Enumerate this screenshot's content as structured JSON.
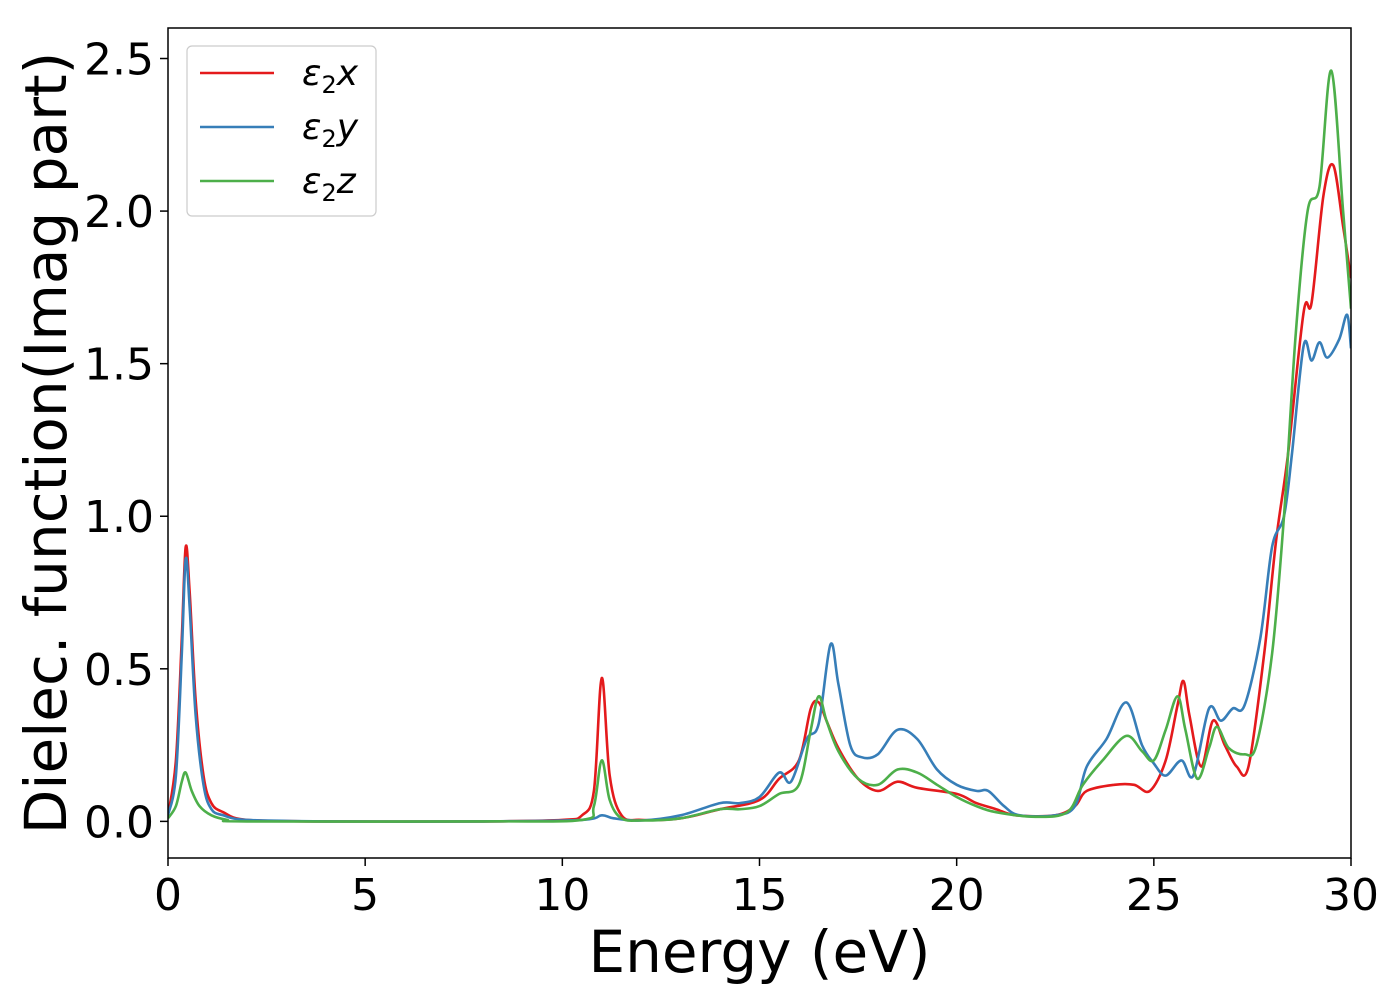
{
  "chart_data": {
    "type": "line",
    "title": "",
    "xlabel": "Energy (eV)",
    "ylabel": "Dielec. function(Imag part)",
    "xlim": [
      0,
      30
    ],
    "ylim": [
      -0.12,
      2.6
    ],
    "xticks": [
      0,
      5,
      10,
      15,
      20,
      25,
      30
    ],
    "yticks": [
      0.0,
      0.5,
      1.0,
      1.5,
      2.0,
      2.5
    ],
    "xtick_labels": [
      "0",
      "5",
      "10",
      "15",
      "20",
      "25",
      "30"
    ],
    "ytick_labels": [
      "0.0",
      "0.5",
      "1.0",
      "1.5",
      "2.0",
      "2.5"
    ],
    "grid": false,
    "legend_position": "top-left",
    "legend": [
      {
        "base": "ε",
        "sub": "2",
        "suffix": "x",
        "color": "#e41a1c"
      },
      {
        "base": "ε",
        "sub": "2",
        "suffix": "y",
        "color": "#377eb8"
      },
      {
        "base": "ε",
        "sub": "2",
        "suffix": "z",
        "color": "#4daf4a"
      }
    ],
    "series": [
      {
        "name": "ε2x",
        "color": "#e41a1c",
        "points": [
          [
            0,
            0.02
          ],
          [
            0.2,
            0.2
          ],
          [
            0.35,
            0.6
          ],
          [
            0.45,
            0.9
          ],
          [
            0.55,
            0.75
          ],
          [
            0.7,
            0.4
          ],
          [
            0.9,
            0.15
          ],
          [
            1.1,
            0.06
          ],
          [
            1.4,
            0.03
          ],
          [
            2,
            0.005
          ],
          [
            4,
            0
          ],
          [
            8,
            0
          ],
          [
            10,
            0.005
          ],
          [
            10.5,
            0.02
          ],
          [
            10.8,
            0.1
          ],
          [
            11.0,
            0.47
          ],
          [
            11.2,
            0.15
          ],
          [
            11.5,
            0.02
          ],
          [
            12,
            0.005
          ],
          [
            13,
            0.01
          ],
          [
            14,
            0.04
          ],
          [
            15,
            0.07
          ],
          [
            15.5,
            0.14
          ],
          [
            16.0,
            0.2
          ],
          [
            16.3,
            0.37
          ],
          [
            16.5,
            0.39
          ],
          [
            16.7,
            0.33
          ],
          [
            17.0,
            0.24
          ],
          [
            17.5,
            0.14
          ],
          [
            18,
            0.1
          ],
          [
            18.5,
            0.13
          ],
          [
            19,
            0.11
          ],
          [
            20,
            0.09
          ],
          [
            20.5,
            0.06
          ],
          [
            21,
            0.04
          ],
          [
            21.5,
            0.02
          ],
          [
            22.5,
            0.02
          ],
          [
            23,
            0.05
          ],
          [
            23.3,
            0.1
          ],
          [
            24,
            0.12
          ],
          [
            24.5,
            0.12
          ],
          [
            24.9,
            0.1
          ],
          [
            25.3,
            0.2
          ],
          [
            25.6,
            0.38
          ],
          [
            25.75,
            0.46
          ],
          [
            25.9,
            0.35
          ],
          [
            26.2,
            0.18
          ],
          [
            26.5,
            0.33
          ],
          [
            26.8,
            0.25
          ],
          [
            27.1,
            0.18
          ],
          [
            27.4,
            0.18
          ],
          [
            27.8,
            0.55
          ],
          [
            28.1,
            0.92
          ],
          [
            28.4,
            1.2
          ],
          [
            28.8,
            1.67
          ],
          [
            29.0,
            1.7
          ],
          [
            29.3,
            2.05
          ],
          [
            29.55,
            2.15
          ],
          [
            29.8,
            1.95
          ],
          [
            30,
            1.78
          ]
        ]
      },
      {
        "name": "ε2y",
        "color": "#377eb8",
        "points": [
          [
            0,
            0.02
          ],
          [
            0.2,
            0.15
          ],
          [
            0.35,
            0.55
          ],
          [
            0.45,
            0.86
          ],
          [
            0.55,
            0.7
          ],
          [
            0.7,
            0.35
          ],
          [
            0.9,
            0.12
          ],
          [
            1.1,
            0.04
          ],
          [
            1.4,
            0.02
          ],
          [
            2,
            0.005
          ],
          [
            4,
            0
          ],
          [
            8,
            0
          ],
          [
            10.5,
            0.005
          ],
          [
            11.0,
            0.02
          ],
          [
            11.3,
            0.01
          ],
          [
            12,
            0.003
          ],
          [
            13,
            0.02
          ],
          [
            14,
            0.06
          ],
          [
            14.5,
            0.06
          ],
          [
            15.0,
            0.08
          ],
          [
            15.5,
            0.16
          ],
          [
            15.8,
            0.13
          ],
          [
            16.2,
            0.27
          ],
          [
            16.5,
            0.32
          ],
          [
            16.8,
            0.58
          ],
          [
            17.0,
            0.45
          ],
          [
            17.3,
            0.25
          ],
          [
            17.6,
            0.21
          ],
          [
            18,
            0.22
          ],
          [
            18.5,
            0.3
          ],
          [
            19,
            0.27
          ],
          [
            19.5,
            0.17
          ],
          [
            20,
            0.12
          ],
          [
            20.5,
            0.1
          ],
          [
            20.8,
            0.1
          ],
          [
            21.2,
            0.05
          ],
          [
            21.6,
            0.02
          ],
          [
            22.5,
            0.02
          ],
          [
            23,
            0.05
          ],
          [
            23.3,
            0.18
          ],
          [
            23.8,
            0.27
          ],
          [
            24.3,
            0.39
          ],
          [
            24.7,
            0.25
          ],
          [
            25.0,
            0.19
          ],
          [
            25.3,
            0.15
          ],
          [
            25.7,
            0.2
          ],
          [
            26.0,
            0.15
          ],
          [
            26.4,
            0.37
          ],
          [
            26.7,
            0.33
          ],
          [
            27.0,
            0.37
          ],
          [
            27.3,
            0.38
          ],
          [
            27.7,
            0.6
          ],
          [
            28.0,
            0.9
          ],
          [
            28.3,
            1.0
          ],
          [
            28.5,
            1.2
          ],
          [
            28.8,
            1.56
          ],
          [
            29.0,
            1.51
          ],
          [
            29.2,
            1.57
          ],
          [
            29.4,
            1.52
          ],
          [
            29.7,
            1.58
          ],
          [
            29.9,
            1.66
          ],
          [
            30,
            1.55
          ]
        ]
      },
      {
        "name": "ε2z",
        "color": "#4daf4a",
        "points": [
          [
            0,
            0.01
          ],
          [
            0.2,
            0.05
          ],
          [
            0.35,
            0.13
          ],
          [
            0.45,
            0.16
          ],
          [
            0.6,
            0.1
          ],
          [
            0.8,
            0.05
          ],
          [
            1.1,
            0.02
          ],
          [
            1.5,
            0.005
          ],
          [
            2,
            0
          ],
          [
            8,
            0
          ],
          [
            10.5,
            0.005
          ],
          [
            10.8,
            0.05
          ],
          [
            11.0,
            0.2
          ],
          [
            11.2,
            0.07
          ],
          [
            11.5,
            0.01
          ],
          [
            12,
            0.003
          ],
          [
            13,
            0.01
          ],
          [
            14,
            0.04
          ],
          [
            14.5,
            0.04
          ],
          [
            15,
            0.05
          ],
          [
            15.5,
            0.09
          ],
          [
            16.0,
            0.12
          ],
          [
            16.3,
            0.3
          ],
          [
            16.5,
            0.41
          ],
          [
            16.7,
            0.33
          ],
          [
            17.0,
            0.23
          ],
          [
            17.5,
            0.14
          ],
          [
            18,
            0.12
          ],
          [
            18.5,
            0.17
          ],
          [
            19,
            0.16
          ],
          [
            19.5,
            0.12
          ],
          [
            20,
            0.08
          ],
          [
            20.5,
            0.05
          ],
          [
            21,
            0.03
          ],
          [
            22,
            0.015
          ],
          [
            22.8,
            0.03
          ],
          [
            23.2,
            0.12
          ],
          [
            23.7,
            0.2
          ],
          [
            24.3,
            0.28
          ],
          [
            24.7,
            0.23
          ],
          [
            25.0,
            0.2
          ],
          [
            25.3,
            0.3
          ],
          [
            25.6,
            0.41
          ],
          [
            25.8,
            0.3
          ],
          [
            26.1,
            0.14
          ],
          [
            26.4,
            0.24
          ],
          [
            26.6,
            0.31
          ],
          [
            26.9,
            0.24
          ],
          [
            27.3,
            0.22
          ],
          [
            27.6,
            0.25
          ],
          [
            28.0,
            0.55
          ],
          [
            28.3,
            1.0
          ],
          [
            28.6,
            1.6
          ],
          [
            28.9,
            2.0
          ],
          [
            29.2,
            2.08
          ],
          [
            29.5,
            2.46
          ],
          [
            29.8,
            2.0
          ],
          [
            30,
            1.68
          ]
        ]
      }
    ]
  }
}
